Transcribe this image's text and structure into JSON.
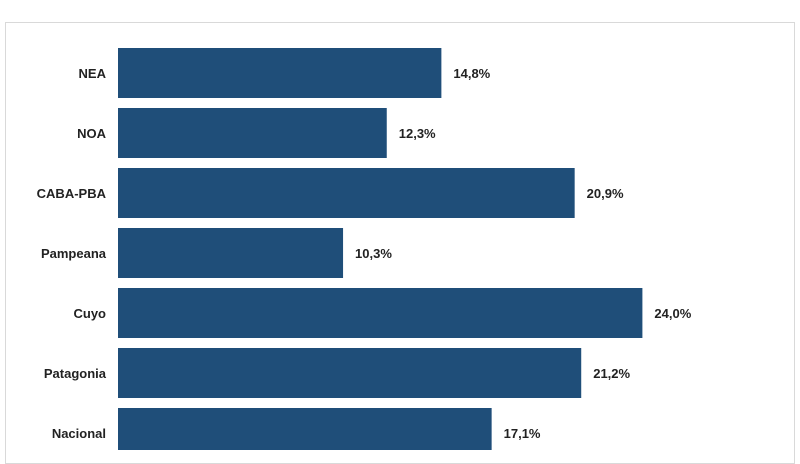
{
  "chart_data": {
    "type": "bar",
    "orientation": "horizontal",
    "categories": [
      "NEA",
      "NOA",
      "CABA-PBA",
      "Pampeana",
      "Cuyo",
      "Patagonia",
      "Nacional"
    ],
    "values": [
      14.8,
      12.3,
      20.9,
      10.3,
      24.0,
      21.2,
      17.1
    ],
    "data_labels": [
      "14,8%",
      "12,3%",
      "20,9%",
      "10,3%",
      "24,0%",
      "21,2%",
      "17,1%"
    ],
    "bar_color": "#1f4e79",
    "grid": false,
    "xlim": [
      0,
      26
    ]
  }
}
